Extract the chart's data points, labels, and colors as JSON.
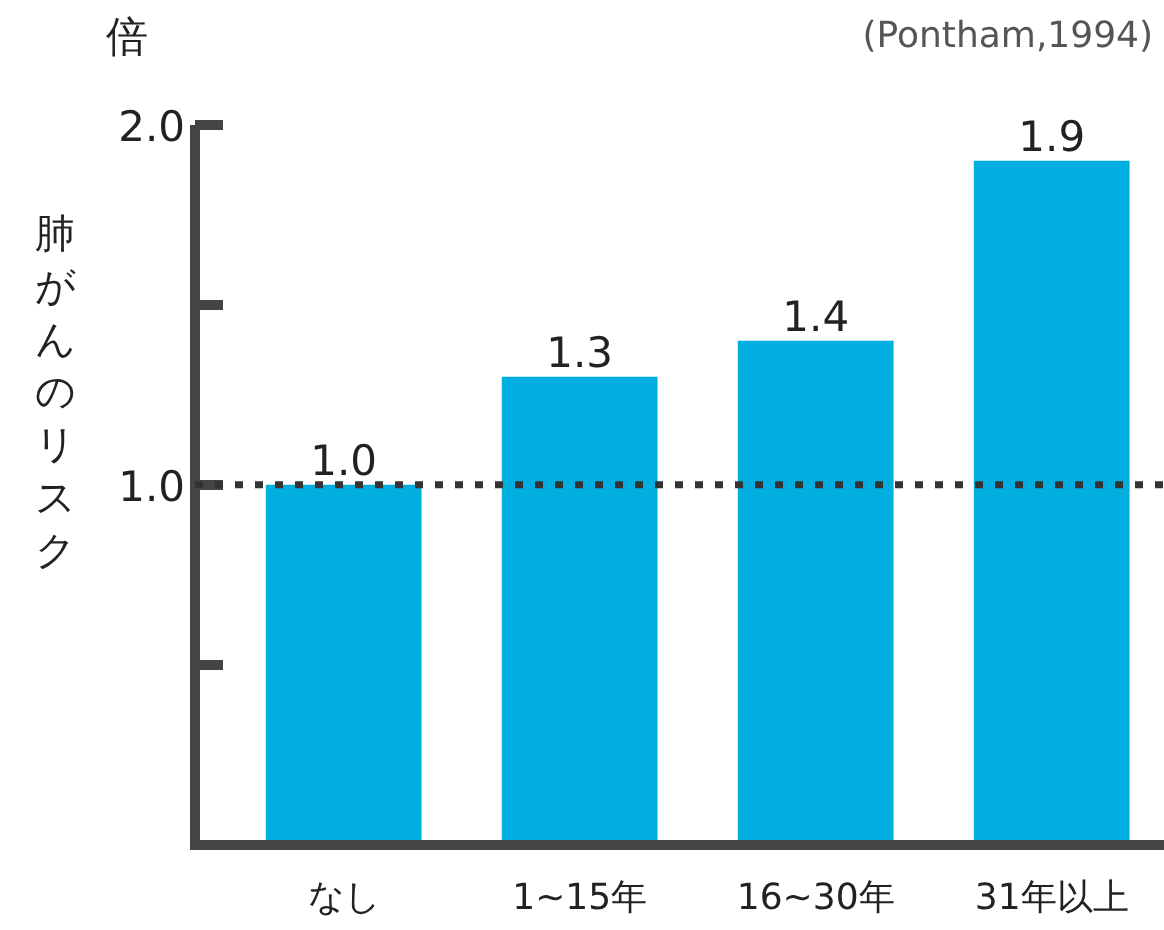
{
  "chart_data": {
    "type": "bar",
    "ylabel": "肺がんのリスク",
    "annotations": [
      "倍",
      "(Pontham,1994)"
    ],
    "categories": [
      "なし",
      "1~15年",
      "16~30年",
      "31年以上"
    ],
    "values": [
      1.0,
      1.3,
      1.4,
      1.9
    ],
    "color": "#00aee0",
    "value_labels": [
      "1.0",
      "1.3",
      "1.4",
      "1.9"
    ],
    "ylim": [
      0,
      2.0
    ],
    "yticks": [
      {
        "value": 0.5,
        "label": null
      },
      {
        "value": 1.0,
        "label": "1.0"
      },
      {
        "value": 1.5,
        "label": null
      },
      {
        "value": 2.0,
        "label": "2.0"
      }
    ],
    "ref_lines": [
      {
        "axis": "y",
        "value": 1.0,
        "label": null,
        "color": "#333333",
        "line_style": "dotted"
      }
    ],
    "grid": false
  }
}
